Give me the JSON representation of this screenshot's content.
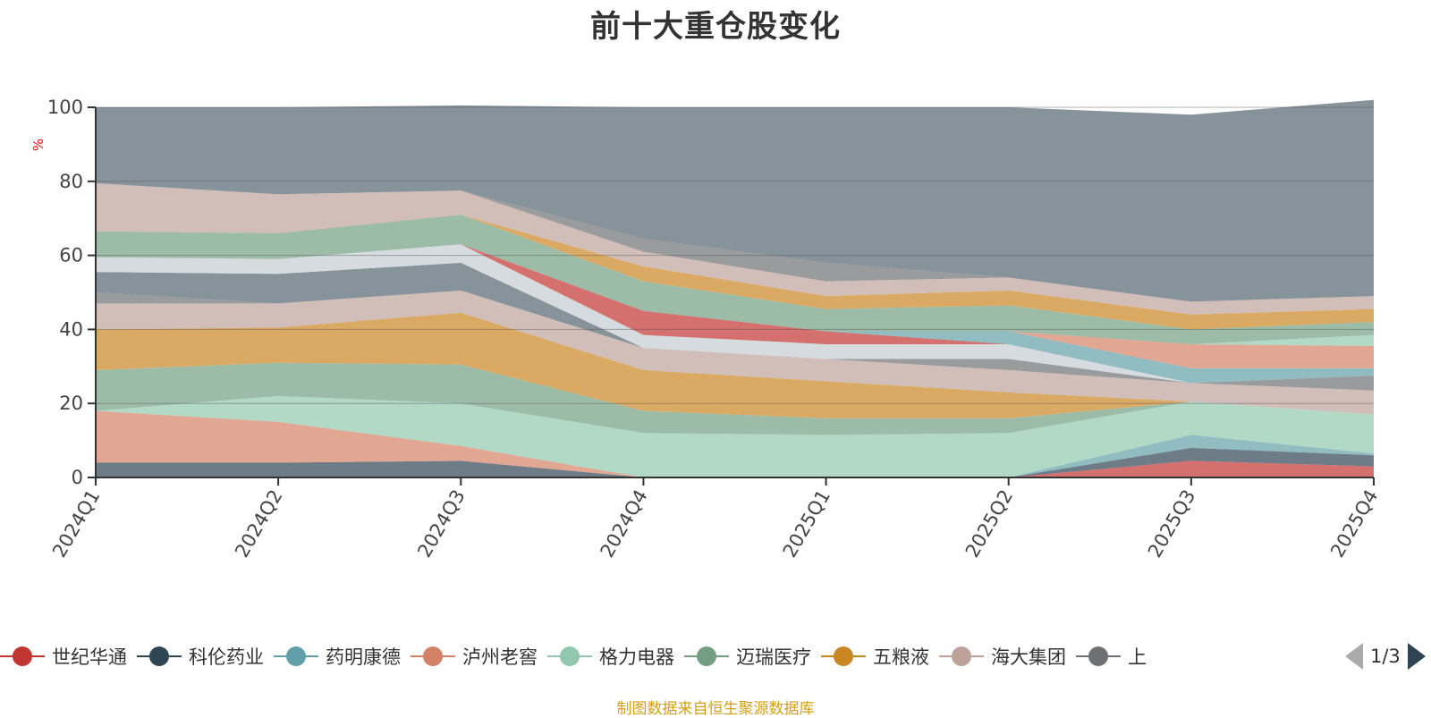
{
  "title": "前十大重仓股变化",
  "footer": "制图数据来自恒生聚源数据库",
  "footer_color": "#d4a017",
  "ylabel": "%",
  "ylabel_color": "#ff0000",
  "legend_page": "1/3",
  "legend": [
    {
      "name": "世纪华通",
      "color": "#c23531"
    },
    {
      "name": "科伦药业",
      "color": "#2f4554"
    },
    {
      "name": "药明康德",
      "color": "#61a0a8"
    },
    {
      "name": "泸州老窖",
      "color": "#d48265"
    },
    {
      "name": "格力电器",
      "color": "#91c7ae"
    },
    {
      "name": "迈瑞医疗",
      "color": "#749f83"
    },
    {
      "name": "五粮液",
      "color": "#ca8622"
    },
    {
      "name": "海大集团",
      "color": "#bda29a"
    },
    {
      "name": "上",
      "color": "#6e7074"
    }
  ],
  "chart_data": {
    "type": "area",
    "stacked": true,
    "title": "前十大重仓股变化",
    "ylabel": "%",
    "ylim": [
      0,
      100
    ],
    "yticks": [
      "0",
      "20",
      "40",
      "60",
      "80",
      "100"
    ],
    "categories": [
      "2024Q1",
      "2024Q2",
      "2024Q3",
      "2024Q4",
      "2025Q1",
      "2025Q2",
      "2025Q3",
      "2025Q4"
    ],
    "grid": true,
    "series": [
      {
        "color": "#c23531",
        "values": [
          0,
          0,
          0,
          0,
          0,
          0,
          4.5,
          3
        ]
      },
      {
        "color": "#2f4554",
        "values": [
          4,
          4,
          4.5,
          0,
          0,
          0,
          3.5,
          3
        ]
      },
      {
        "color": "#61a0a8",
        "values": [
          0,
          0,
          0,
          0,
          0,
          0,
          3.5,
          0.5
        ]
      },
      {
        "color": "#d48265",
        "values": [
          14,
          11,
          4,
          0,
          0,
          0,
          0,
          0
        ]
      },
      {
        "color": "#91c7ae",
        "values": [
          0,
          7,
          11.5,
          12,
          11.5,
          12,
          9,
          10.5
        ]
      },
      {
        "color": "#749f83",
        "values": [
          11,
          9,
          10.5,
          6,
          4.5,
          4,
          0,
          0
        ]
      },
      {
        "color": "#ca8622",
        "values": [
          11,
          9.5,
          14,
          11,
          10,
          7,
          0,
          0
        ]
      },
      {
        "color": "#bda29a",
        "values": [
          7,
          6.5,
          6,
          6,
          6,
          6,
          5,
          6.5
        ]
      },
      {
        "color": "#6e7074",
        "values": [
          3,
          0,
          0,
          0,
          0,
          3,
          0,
          4
        ]
      },
      {
        "color": "#546570",
        "values": [
          5.5,
          8,
          7.5,
          0,
          0,
          0,
          0,
          0
        ]
      },
      {
        "color": "#c4ccd3",
        "values": [
          4,
          4,
          5,
          3.5,
          4,
          4,
          0,
          0
        ]
      },
      {
        "color": "#c23531",
        "values": [
          0,
          0,
          0,
          6.5,
          3.5,
          0,
          0,
          0
        ]
      },
      {
        "color": "#61a0a8",
        "values": [
          0,
          0,
          0,
          0,
          0,
          3.5,
          4,
          2
        ]
      },
      {
        "color": "#d48265",
        "values": [
          0,
          0,
          0,
          0,
          0,
          0,
          6.5,
          6
        ]
      },
      {
        "color": "#91c7ae",
        "values": [
          0,
          0,
          0,
          0,
          0,
          0,
          0,
          3
        ]
      },
      {
        "color": "#749f83",
        "values": [
          7,
          7,
          8,
          8,
          6,
          7,
          4,
          3.5
        ]
      },
      {
        "color": "#ca8622",
        "values": [
          0,
          0,
          0,
          4,
          3.5,
          4,
          4,
          3.5
        ]
      },
      {
        "color": "#bda29a",
        "values": [
          13,
          10.5,
          6.5,
          4,
          4,
          3.5,
          3.5,
          3.5
        ]
      },
      {
        "color": "#6e7074",
        "values": [
          0,
          0,
          0,
          3.5,
          5,
          0,
          0,
          0
        ]
      },
      {
        "color": "#546570",
        "values": [
          20.5,
          23.5,
          23,
          35.5,
          42,
          46,
          50.5,
          53
        ]
      }
    ]
  }
}
